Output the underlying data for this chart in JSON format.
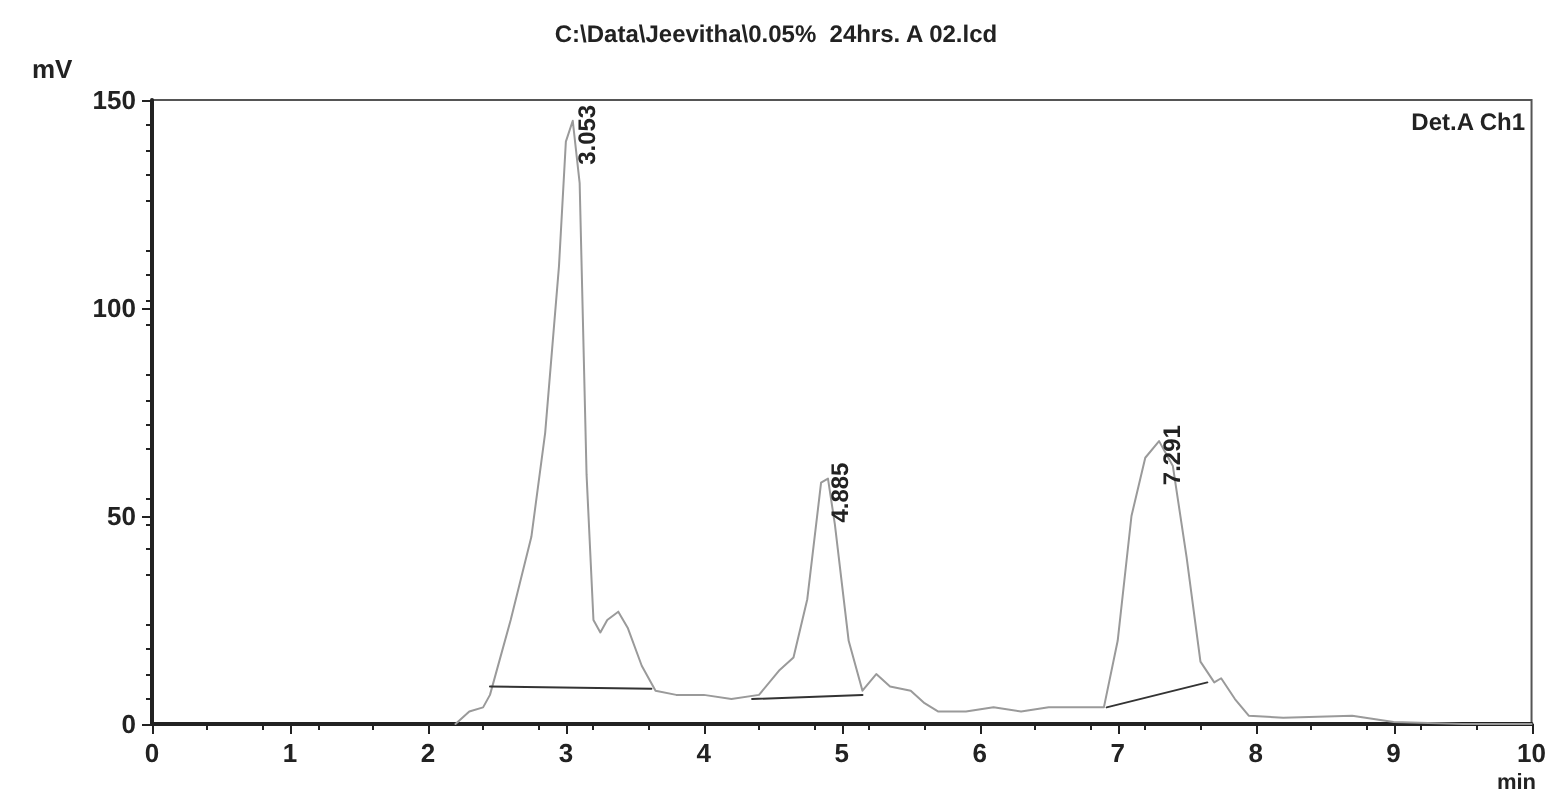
{
  "chart_data": {
    "type": "line",
    "title": "C:\\Data\\Jeevitha\\0.05%  24hrs. A 02.lcd",
    "xlabel": "min",
    "ylabel": "mV",
    "xlim": [
      0,
      10
    ],
    "xticks": [
      0,
      1,
      2,
      3,
      4,
      5,
      6,
      7,
      8,
      9,
      10
    ],
    "ylim": [
      0,
      150
    ],
    "yticks": [
      0,
      50,
      100,
      150
    ],
    "grid": false,
    "marker": "none",
    "line_style": "solid",
    "series": [
      {
        "color": "#9a9a9a",
        "x": [
          2.2,
          2.3,
          2.4,
          2.45,
          2.6,
          2.75,
          2.85,
          2.95,
          3.0,
          3.05,
          3.1,
          3.15,
          3.2,
          3.25,
          3.3,
          3.38,
          3.45,
          3.55,
          3.65,
          3.8,
          4.0,
          4.2,
          4.4,
          4.55,
          4.65,
          4.75,
          4.85,
          4.9,
          4.95,
          5.05,
          5.15,
          5.25,
          5.35,
          5.5,
          5.6,
          5.7,
          5.9,
          6.1,
          6.3,
          6.5,
          6.7,
          6.9,
          7.0,
          7.1,
          7.2,
          7.3,
          7.4,
          7.5,
          7.6,
          7.7,
          7.75,
          7.85,
          7.95,
          8.2,
          8.7,
          9.0,
          9.5,
          10
        ],
        "values": [
          0,
          3,
          4,
          7,
          25,
          45,
          70,
          110,
          140,
          145,
          130,
          60,
          25,
          22,
          25,
          27,
          23,
          14,
          8,
          7,
          7,
          6,
          7,
          13,
          16,
          30,
          58,
          59,
          48,
          20,
          8,
          12,
          9,
          8,
          5,
          3,
          3,
          4,
          3,
          4,
          4,
          4,
          20,
          50,
          64,
          68,
          62,
          40,
          15,
          10,
          11,
          6,
          2,
          1.5,
          2,
          0.5,
          0,
          0
        ]
      },
      {
        "color": "#333333",
        "x": [
          2.45,
          3.62
        ],
        "values": [
          9,
          8.5
        ]
      },
      {
        "color": "#333333",
        "x": [
          4.35,
          5.15
        ],
        "values": [
          6,
          7
        ]
      },
      {
        "color": "#333333",
        "x": [
          6.92,
          7.65
        ],
        "values": [
          4,
          10
        ]
      }
    ],
    "annotations": [
      {
        "text": "3.053",
        "x": 3.053,
        "y": 145
      },
      {
        "text": "4.885",
        "x": 4.885,
        "y": 59
      },
      {
        "text": "7.291",
        "x": 7.291,
        "y": 68
      },
      "Det.A Ch1"
    ]
  }
}
